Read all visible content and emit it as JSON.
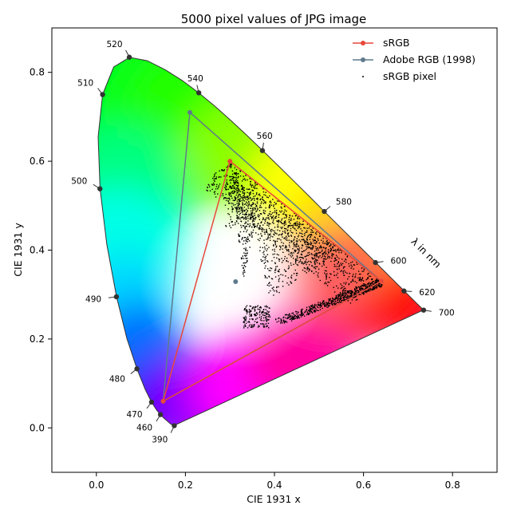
{
  "chart_data": {
    "type": "scatter",
    "title": "5000 pixel values of JPG image",
    "xlabel": "CIE 1931 x",
    "ylabel": "CIE 1931 y",
    "xlim": [
      -0.1,
      0.9
    ],
    "ylim": [
      -0.1,
      0.9
    ],
    "xticks": [
      "0.0",
      "0.2",
      "0.4",
      "0.6",
      "0.8"
    ],
    "yticks": [
      "0.0",
      "0.2",
      "0.4",
      "0.6",
      "0.8"
    ],
    "grid": false,
    "legend_position": "top-right",
    "annotation": "λ in nm",
    "spectral_locus": [
      {
        "label": "390",
        "x": 0.175,
        "y": 0.005
      },
      {
        "label": "460",
        "x": 0.144,
        "y": 0.03
      },
      {
        "label": "470",
        "x": 0.124,
        "y": 0.058
      },
      {
        "label": "480",
        "x": 0.091,
        "y": 0.133
      },
      {
        "label": "490",
        "x": 0.045,
        "y": 0.295
      },
      {
        "label": "500",
        "x": 0.008,
        "y": 0.538
      },
      {
        "label": "510",
        "x": 0.014,
        "y": 0.75
      },
      {
        "label": "520",
        "x": 0.074,
        "y": 0.834
      },
      {
        "label": "540",
        "x": 0.23,
        "y": 0.754
      },
      {
        "label": "560",
        "x": 0.373,
        "y": 0.624
      },
      {
        "label": "580",
        "x": 0.512,
        "y": 0.487
      },
      {
        "label": "600",
        "x": 0.627,
        "y": 0.372
      },
      {
        "label": "620",
        "x": 0.691,
        "y": 0.308
      },
      {
        "label": "700",
        "x": 0.735,
        "y": 0.265
      }
    ],
    "series": [
      {
        "name": "sRGB",
        "color": "#e8473a",
        "points": [
          [
            0.64,
            0.33
          ],
          [
            0.3,
            0.6
          ],
          [
            0.15,
            0.06
          ],
          [
            0.64,
            0.33
          ]
        ]
      },
      {
        "name": "Adobe RGB (1998)",
        "color": "#5e7a8c",
        "points": [
          [
            0.64,
            0.33
          ],
          [
            0.21,
            0.71
          ],
          [
            0.15,
            0.06
          ],
          [
            0.64,
            0.33
          ]
        ]
      },
      {
        "name": "sRGB pixel",
        "color": "#000000",
        "marker": "dot",
        "count": 5000
      }
    ],
    "whitepoint": {
      "x": 0.3127,
      "y": 0.329
    }
  }
}
